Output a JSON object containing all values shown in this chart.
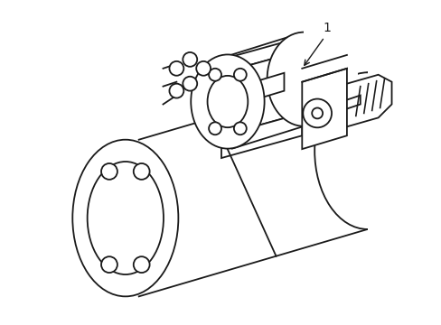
{
  "background_color": "#ffffff",
  "line_color": "#1a1a1a",
  "line_width": 1.3,
  "label": "1",
  "figsize": [
    4.89,
    3.6
  ],
  "dpi": 100
}
